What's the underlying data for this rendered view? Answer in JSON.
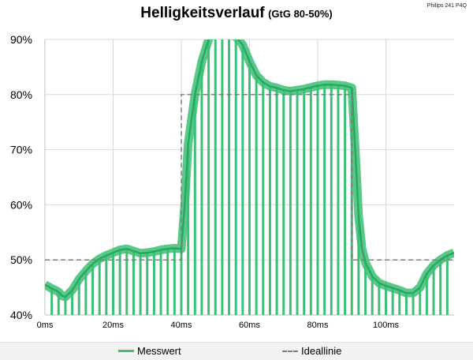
{
  "chart_data": {
    "type": "line",
    "title": "Helligkeitsverlauf",
    "subtitle": "(GtG 80-50%)",
    "corner_note": "Philips 241 P4Q",
    "xlabel": "",
    "ylabel": "",
    "xlim": [
      0,
      120
    ],
    "ylim": [
      40,
      90
    ],
    "x_ticks": [
      "0ms",
      "20ms",
      "40ms",
      "60ms",
      "80ms",
      "100ms"
    ],
    "x_tick_values": [
      0,
      20,
      40,
      60,
      80,
      100
    ],
    "y_ticks": [
      "40%",
      "50%",
      "60%",
      "70%",
      "80%",
      "90%"
    ],
    "y_tick_values": [
      40,
      50,
      60,
      70,
      80,
      90
    ],
    "grid": true,
    "legend_position": "bottom",
    "series": [
      {
        "name": "Messwert",
        "color": "#3cbf76",
        "x": [
          0,
          2,
          4,
          5,
          6,
          8,
          10,
          12,
          14,
          16,
          18,
          20,
          22,
          24,
          26,
          28,
          30,
          32,
          34,
          36,
          38,
          40,
          41,
          42,
          44,
          46,
          48,
          50,
          52,
          54,
          56,
          58,
          60,
          62,
          64,
          66,
          68,
          70,
          72,
          74,
          76,
          78,
          80,
          82,
          84,
          86,
          88,
          90,
          91,
          92,
          93,
          94,
          96,
          98,
          100,
          102,
          104,
          106,
          108,
          110,
          112,
          114,
          116,
          118,
          120
        ],
        "y": [
          45.5,
          44.8,
          44.2,
          43.5,
          43.3,
          44.5,
          46.5,
          48.0,
          49.3,
          50.2,
          50.8,
          51.3,
          51.8,
          52.0,
          51.6,
          51.2,
          51.3,
          51.5,
          51.8,
          52.0,
          52.1,
          52.0,
          60.0,
          71.0,
          80.0,
          86.0,
          90.0,
          92.0,
          91.5,
          91.0,
          90.5,
          89.0,
          86.0,
          83.5,
          82.2,
          81.5,
          81.2,
          80.8,
          80.6,
          80.8,
          81.0,
          81.3,
          81.6,
          81.8,
          81.8,
          81.7,
          81.6,
          81.2,
          70.0,
          58.0,
          52.0,
          49.5,
          47.0,
          45.8,
          45.3,
          44.9,
          44.5,
          44.0,
          44.0,
          45.0,
          47.5,
          49.0,
          50.0,
          50.8,
          51.3
        ]
      },
      {
        "name": "Ideallinie",
        "color": "#7f7f7f",
        "x": [
          0,
          40,
          40,
          90,
          90,
          120
        ],
        "y": [
          50,
          50,
          80,
          80,
          50,
          50
        ]
      }
    ],
    "pulse_positions_ms": [
      2,
      4,
      6,
      8,
      10,
      12,
      14,
      16,
      18,
      20,
      22,
      24,
      26,
      28,
      30,
      32,
      34,
      36,
      38,
      40,
      42,
      44,
      46,
      48,
      50,
      52,
      54,
      56,
      58,
      60,
      62,
      64,
      66,
      68,
      70,
      72,
      74,
      76,
      78,
      80,
      82,
      84,
      86,
      88,
      90,
      92,
      94,
      96,
      98,
      100,
      102,
      104,
      106,
      108,
      110,
      112,
      114,
      116,
      118
    ],
    "legend": {
      "measured_label": "Messwert",
      "ideal_label": "Ideallinie"
    }
  }
}
